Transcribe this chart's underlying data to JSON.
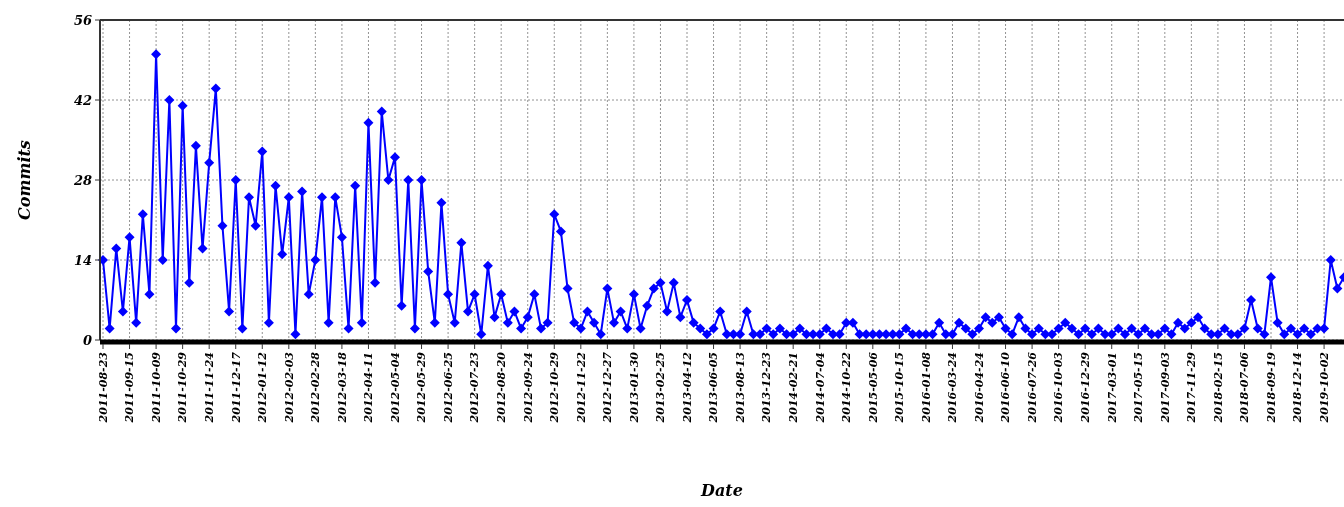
{
  "chart_data": {
    "type": "line",
    "xlabel": "Date",
    "ylabel": "Commits",
    "categories": [
      "2011-08-23",
      null,
      null,
      null,
      "2011-09-15",
      null,
      null,
      null,
      "2011-10-09",
      null,
      null,
      null,
      "2011-10-29",
      null,
      null,
      null,
      "2011-11-24",
      null,
      null,
      null,
      "2011-12-17",
      null,
      null,
      null,
      "2012-01-12",
      null,
      null,
      null,
      "2012-02-03",
      null,
      null,
      null,
      "2012-02-28",
      null,
      null,
      null,
      "2012-03-18",
      null,
      null,
      null,
      "2012-04-11",
      null,
      null,
      null,
      "2012-05-04",
      null,
      null,
      null,
      "2012-05-29",
      null,
      null,
      null,
      "2012-06-25",
      null,
      null,
      null,
      "2012-07-23",
      null,
      null,
      null,
      "2012-08-20",
      null,
      null,
      null,
      "2012-09-24",
      null,
      null,
      null,
      "2012-10-29",
      null,
      null,
      null,
      "2012-11-22",
      null,
      null,
      null,
      "2012-12-27",
      null,
      null,
      null,
      "2013-01-30",
      null,
      null,
      null,
      "2013-02-25",
      null,
      null,
      null,
      "2013-04-12",
      null,
      null,
      null,
      "2013-06-05",
      null,
      null,
      null,
      "2013-08-13",
      null,
      null,
      null,
      "2013-12-23",
      null,
      null,
      null,
      "2014-02-21",
      null,
      null,
      null,
      "2014-07-04",
      null,
      null,
      null,
      "2014-10-22",
      null,
      null,
      null,
      "2015-05-06",
      null,
      null,
      null,
      "2015-10-15",
      null,
      null,
      null,
      "2016-01-08",
      null,
      null,
      null,
      "2016-03-24",
      null,
      null,
      null,
      "2016-04-24",
      null,
      null,
      null,
      "2016-06-10",
      null,
      null,
      null,
      "2016-07-26",
      null,
      null,
      null,
      "2016-10-03",
      null,
      null,
      null,
      "2016-12-29",
      null,
      null,
      null,
      "2017-03-01",
      null,
      null,
      null,
      "2017-05-15",
      null,
      null,
      null,
      "2017-09-03",
      null,
      null,
      null,
      "2017-11-29",
      null,
      null,
      null,
      "2018-02-15",
      null,
      null,
      null,
      "2018-07-06",
      null,
      null,
      null,
      "2018-09-19",
      null,
      null,
      null,
      "2018-12-14",
      null,
      null,
      null,
      "2019-10-02",
      null,
      null,
      null
    ],
    "series": [
      {
        "color": "#0000ff",
        "values": [
          14,
          2,
          16,
          5,
          18,
          3,
          22,
          8,
          50,
          14,
          42,
          2,
          41,
          10,
          34,
          16,
          31,
          44,
          20,
          5,
          28,
          2,
          25,
          20,
          33,
          3,
          27,
          15,
          25,
          1,
          26,
          8,
          14,
          25,
          3,
          25,
          18,
          2,
          27,
          3,
          38,
          10,
          40,
          28,
          32,
          6,
          28,
          2,
          28,
          12,
          3,
          24,
          8,
          3,
          17,
          5,
          8,
          1,
          13,
          4,
          8,
          3,
          5,
          2,
          4,
          8,
          2,
          3,
          22,
          19,
          9,
          3,
          2,
          5,
          3,
          1,
          9,
          3,
          5,
          2,
          8,
          2,
          6,
          9,
          10,
          5,
          10,
          4,
          7,
          3,
          2,
          1,
          2,
          5,
          1,
          1,
          1,
          5,
          1,
          1,
          2,
          1,
          2,
          1,
          1,
          2,
          1,
          1,
          1,
          2,
          1,
          1,
          3,
          3,
          1,
          1,
          1,
          1,
          1,
          1,
          1,
          2,
          1,
          1,
          1,
          1,
          3,
          1,
          1,
          3,
          2,
          1,
          2,
          4,
          3,
          4,
          2,
          1,
          4,
          2,
          1,
          2,
          1,
          1,
          2,
          3,
          2,
          1,
          2,
          1,
          2,
          1,
          1,
          2,
          1,
          2,
          1,
          2,
          1,
          1,
          2,
          1,
          3,
          2,
          3,
          4,
          2,
          1,
          1,
          2,
          1,
          1,
          2,
          7,
          2,
          1,
          11,
          3,
          1,
          2,
          1,
          2,
          1,
          2,
          2,
          14,
          9,
          11
        ]
      }
    ],
    "ylim": [
      0,
      56
    ],
    "yticks": [
      0,
      14,
      28,
      42,
      56
    ],
    "grid": true,
    "marker": "diamond",
    "line_style": "solid"
  }
}
